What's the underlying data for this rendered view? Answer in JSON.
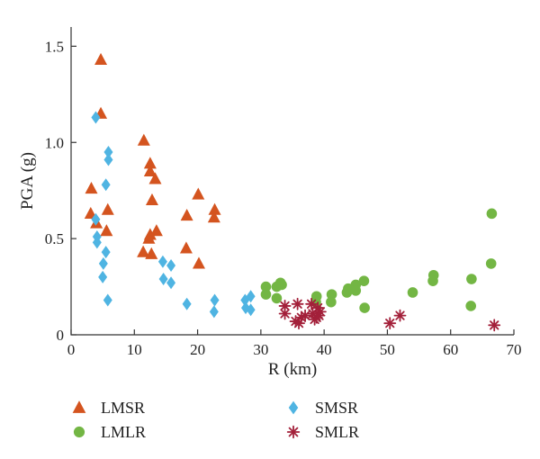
{
  "chart_data": {
    "type": "scatter",
    "xlabel": "R (km)",
    "ylabel": "PGA (g)",
    "xlim": [
      0,
      70
    ],
    "ylim": [
      0,
      1.6
    ],
    "x_ticks": [
      0,
      10,
      20,
      30,
      40,
      50,
      60,
      70
    ],
    "x_tick_labels": [
      "0",
      "10",
      "20",
      "30",
      "40",
      "50",
      "60",
      "70"
    ],
    "y_ticks": [
      0,
      0.5,
      1.0,
      1.5
    ],
    "y_tick_labels": [
      "0",
      "0.5",
      "1.0",
      "1.5"
    ],
    "grid": false,
    "legend_position": "bottom",
    "series": [
      {
        "name": "LMSR",
        "marker": "triangle",
        "color": "#d4541f",
        "points": [
          [
            4.7,
            1.43
          ],
          [
            4.7,
            1.15
          ],
          [
            3.2,
            0.76
          ],
          [
            3.1,
            0.63
          ],
          [
            4.0,
            0.58
          ],
          [
            5.8,
            0.65
          ],
          [
            5.6,
            0.54
          ],
          [
            11.5,
            1.01
          ],
          [
            12.5,
            0.89
          ],
          [
            12.5,
            0.85
          ],
          [
            13.3,
            0.81
          ],
          [
            12.8,
            0.7
          ],
          [
            13.5,
            0.54
          ],
          [
            12.5,
            0.52
          ],
          [
            12.3,
            0.5
          ],
          [
            11.4,
            0.43
          ],
          [
            12.7,
            0.42
          ],
          [
            20.1,
            0.73
          ],
          [
            18.3,
            0.62
          ],
          [
            22.7,
            0.65
          ],
          [
            22.6,
            0.61
          ],
          [
            18.2,
            0.45
          ],
          [
            20.2,
            0.37
          ]
        ]
      },
      {
        "name": "SMSR",
        "marker": "diamond",
        "color": "#4fb4e2",
        "points": [
          [
            3.9,
            1.13
          ],
          [
            5.9,
            0.95
          ],
          [
            5.9,
            0.91
          ],
          [
            5.5,
            0.78
          ],
          [
            3.9,
            0.6
          ],
          [
            4.1,
            0.51
          ],
          [
            4.1,
            0.48
          ],
          [
            5.5,
            0.43
          ],
          [
            5.1,
            0.37
          ],
          [
            5.0,
            0.3
          ],
          [
            5.8,
            0.18
          ],
          [
            14.5,
            0.38
          ],
          [
            15.8,
            0.36
          ],
          [
            14.6,
            0.29
          ],
          [
            15.8,
            0.27
          ],
          [
            18.3,
            0.16
          ],
          [
            22.7,
            0.18
          ],
          [
            22.6,
            0.12
          ],
          [
            28.4,
            0.2
          ],
          [
            27.5,
            0.18
          ],
          [
            27.6,
            0.14
          ],
          [
            28.4,
            0.13
          ]
        ]
      },
      {
        "name": "LMLR",
        "marker": "circle",
        "color": "#73b644",
        "points": [
          [
            30.8,
            0.25
          ],
          [
            30.8,
            0.21
          ],
          [
            32.5,
            0.25
          ],
          [
            33.3,
            0.26
          ],
          [
            33.1,
            0.27
          ],
          [
            32.5,
            0.19
          ],
          [
            38.8,
            0.2
          ],
          [
            38.7,
            0.17
          ],
          [
            41.2,
            0.21
          ],
          [
            41.1,
            0.17
          ],
          [
            43.8,
            0.24
          ],
          [
            43.6,
            0.22
          ],
          [
            45.0,
            0.26
          ],
          [
            45.0,
            0.23
          ],
          [
            46.3,
            0.28
          ],
          [
            46.4,
            0.14
          ],
          [
            54.0,
            0.22
          ],
          [
            57.3,
            0.31
          ],
          [
            57.2,
            0.28
          ],
          [
            63.3,
            0.29
          ],
          [
            63.2,
            0.15
          ],
          [
            66.5,
            0.63
          ],
          [
            66.4,
            0.37
          ]
        ]
      },
      {
        "name": "SMLR",
        "marker": "asterisk",
        "color": "#a3203a",
        "points": [
          [
            33.8,
            0.15
          ],
          [
            33.8,
            0.11
          ],
          [
            35.8,
            0.16
          ],
          [
            36.0,
            0.06
          ],
          [
            35.5,
            0.07
          ],
          [
            36.4,
            0.09
          ],
          [
            37.0,
            0.1
          ],
          [
            38.0,
            0.16
          ],
          [
            38.2,
            0.11
          ],
          [
            38.5,
            0.08
          ],
          [
            39.0,
            0.14
          ],
          [
            39.2,
            0.1
          ],
          [
            39.4,
            0.12
          ],
          [
            38.8,
            0.09
          ],
          [
            50.4,
            0.06
          ],
          [
            52.0,
            0.1
          ],
          [
            66.9,
            0.05
          ]
        ]
      }
    ]
  }
}
